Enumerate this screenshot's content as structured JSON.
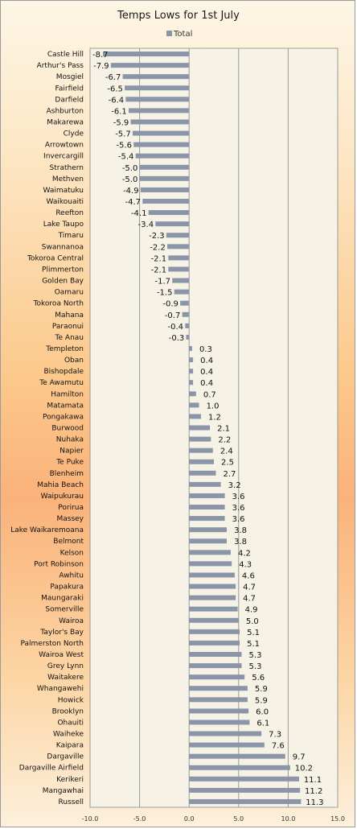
{
  "colors": {
    "bar": "#8a96a8",
    "plot_bg": "#f6f2e6",
    "grid": "#9a9a9a"
  },
  "chart_data": {
    "type": "bar",
    "orientation": "horizontal",
    "title": "Temps Lows for 1st July",
    "legend": {
      "position": "top",
      "entries": [
        "Total"
      ]
    },
    "xlim": [
      -10,
      15
    ],
    "x_ticks": [
      "-10.0",
      "-5.0",
      "0.0",
      "5.0",
      "10.0",
      "15.0"
    ],
    "grid": "vertical",
    "categories": [
      "Castle Hill",
      "Arthur's Pass",
      "Mosgiel",
      "Fairfield",
      "Darfield",
      "Ashburton",
      "Makarewa",
      "Clyde",
      "Arrowtown",
      "Invercargill",
      "Strathern",
      "Methven",
      "Waimatuku",
      "Waikouaiti",
      "Reefton",
      "Lake Taupo",
      "Timaru",
      "Swannanoa",
      "Tokoroa Central",
      "Plimmerton",
      "Golden Bay",
      "Oamaru",
      "Tokoroa North",
      "Mahana",
      "Paraonui",
      "Te Anau",
      "Templeton",
      "Oban",
      "Bishopdale",
      "Te Awamutu",
      "Hamilton",
      "Matamata",
      "Pongakawa",
      "Burwood",
      "Nuhaka",
      "Napier",
      "Te Puke",
      "Blenheim",
      "Mahia Beach",
      "Waipukurau",
      "Porirua",
      "Massey",
      "Lake Waikaremoana",
      "Belmont",
      "Kelson",
      "Port Robinson",
      "Awhitu",
      "Papakura",
      "Maungaraki",
      "Somerville",
      "Wairoa",
      "Taylor's Bay",
      "Palmerston North",
      "Wairoa West",
      "Grey Lynn",
      "Waitakere",
      "Whangawehi",
      "Howick",
      "Brooklyn",
      "Ohauiti",
      "Waiheke",
      "Kaipara",
      "Dargaville",
      "Dargaville Airfield",
      "Kerikeri",
      "Mangawhai",
      "Russell"
    ],
    "series": [
      {
        "name": "Total",
        "values": [
          -8.7,
          -7.9,
          -6.7,
          -6.5,
          -6.4,
          -6.1,
          -5.9,
          -5.7,
          -5.6,
          -5.4,
          -5.0,
          -5.0,
          -4.9,
          -4.7,
          -4.1,
          -3.4,
          -2.3,
          -2.2,
          -2.1,
          -2.1,
          -1.7,
          -1.5,
          -0.9,
          -0.7,
          -0.4,
          -0.3,
          0.3,
          0.4,
          0.4,
          0.4,
          0.7,
          1.0,
          1.2,
          2.1,
          2.2,
          2.4,
          2.5,
          2.7,
          3.2,
          3.6,
          3.6,
          3.6,
          3.8,
          3.8,
          4.2,
          4.3,
          4.6,
          4.7,
          4.7,
          4.9,
          5.0,
          5.1,
          5.1,
          5.3,
          5.3,
          5.6,
          5.9,
          5.9,
          6.0,
          6.1,
          7.3,
          7.6,
          9.7,
          10.2,
          11.1,
          11.2,
          11.3
        ],
        "labels": [
          "-8.7",
          "-7.9",
          "-6.7",
          "-6.5",
          "-6.4",
          "-6.1",
          "-5.9",
          "-5.7",
          "-5.6",
          "-5.4",
          "-5.0",
          "-5.0",
          "-4.9",
          "-4.7",
          "-4.1",
          "-3.4",
          "-2.3",
          "-2.2",
          "-2.1",
          "-2.1",
          "-1.7",
          "-1.5",
          "-0.9",
          "-0.7",
          "-0.4",
          "-0.3",
          "0.3",
          "0.4",
          "0.4",
          "0.4",
          "0.7",
          "1.0",
          "1.2",
          "2.1",
          "2.2",
          "2.4",
          "2.5",
          "2.7",
          "3.2",
          "3.6",
          "3.6",
          "3.6",
          "3.8",
          "3.8",
          "4.2",
          "4.3",
          "4.6",
          "4.7",
          "4.7",
          "4.9",
          "5.0",
          "5.1",
          "5.1",
          "5.3",
          "5.3",
          "5.6",
          "5.9",
          "5.9",
          "6.0",
          "6.1",
          "7.3",
          "7.6",
          "9.7",
          "10.2",
          "11.1",
          "11.2",
          "11.3"
        ]
      }
    ]
  }
}
